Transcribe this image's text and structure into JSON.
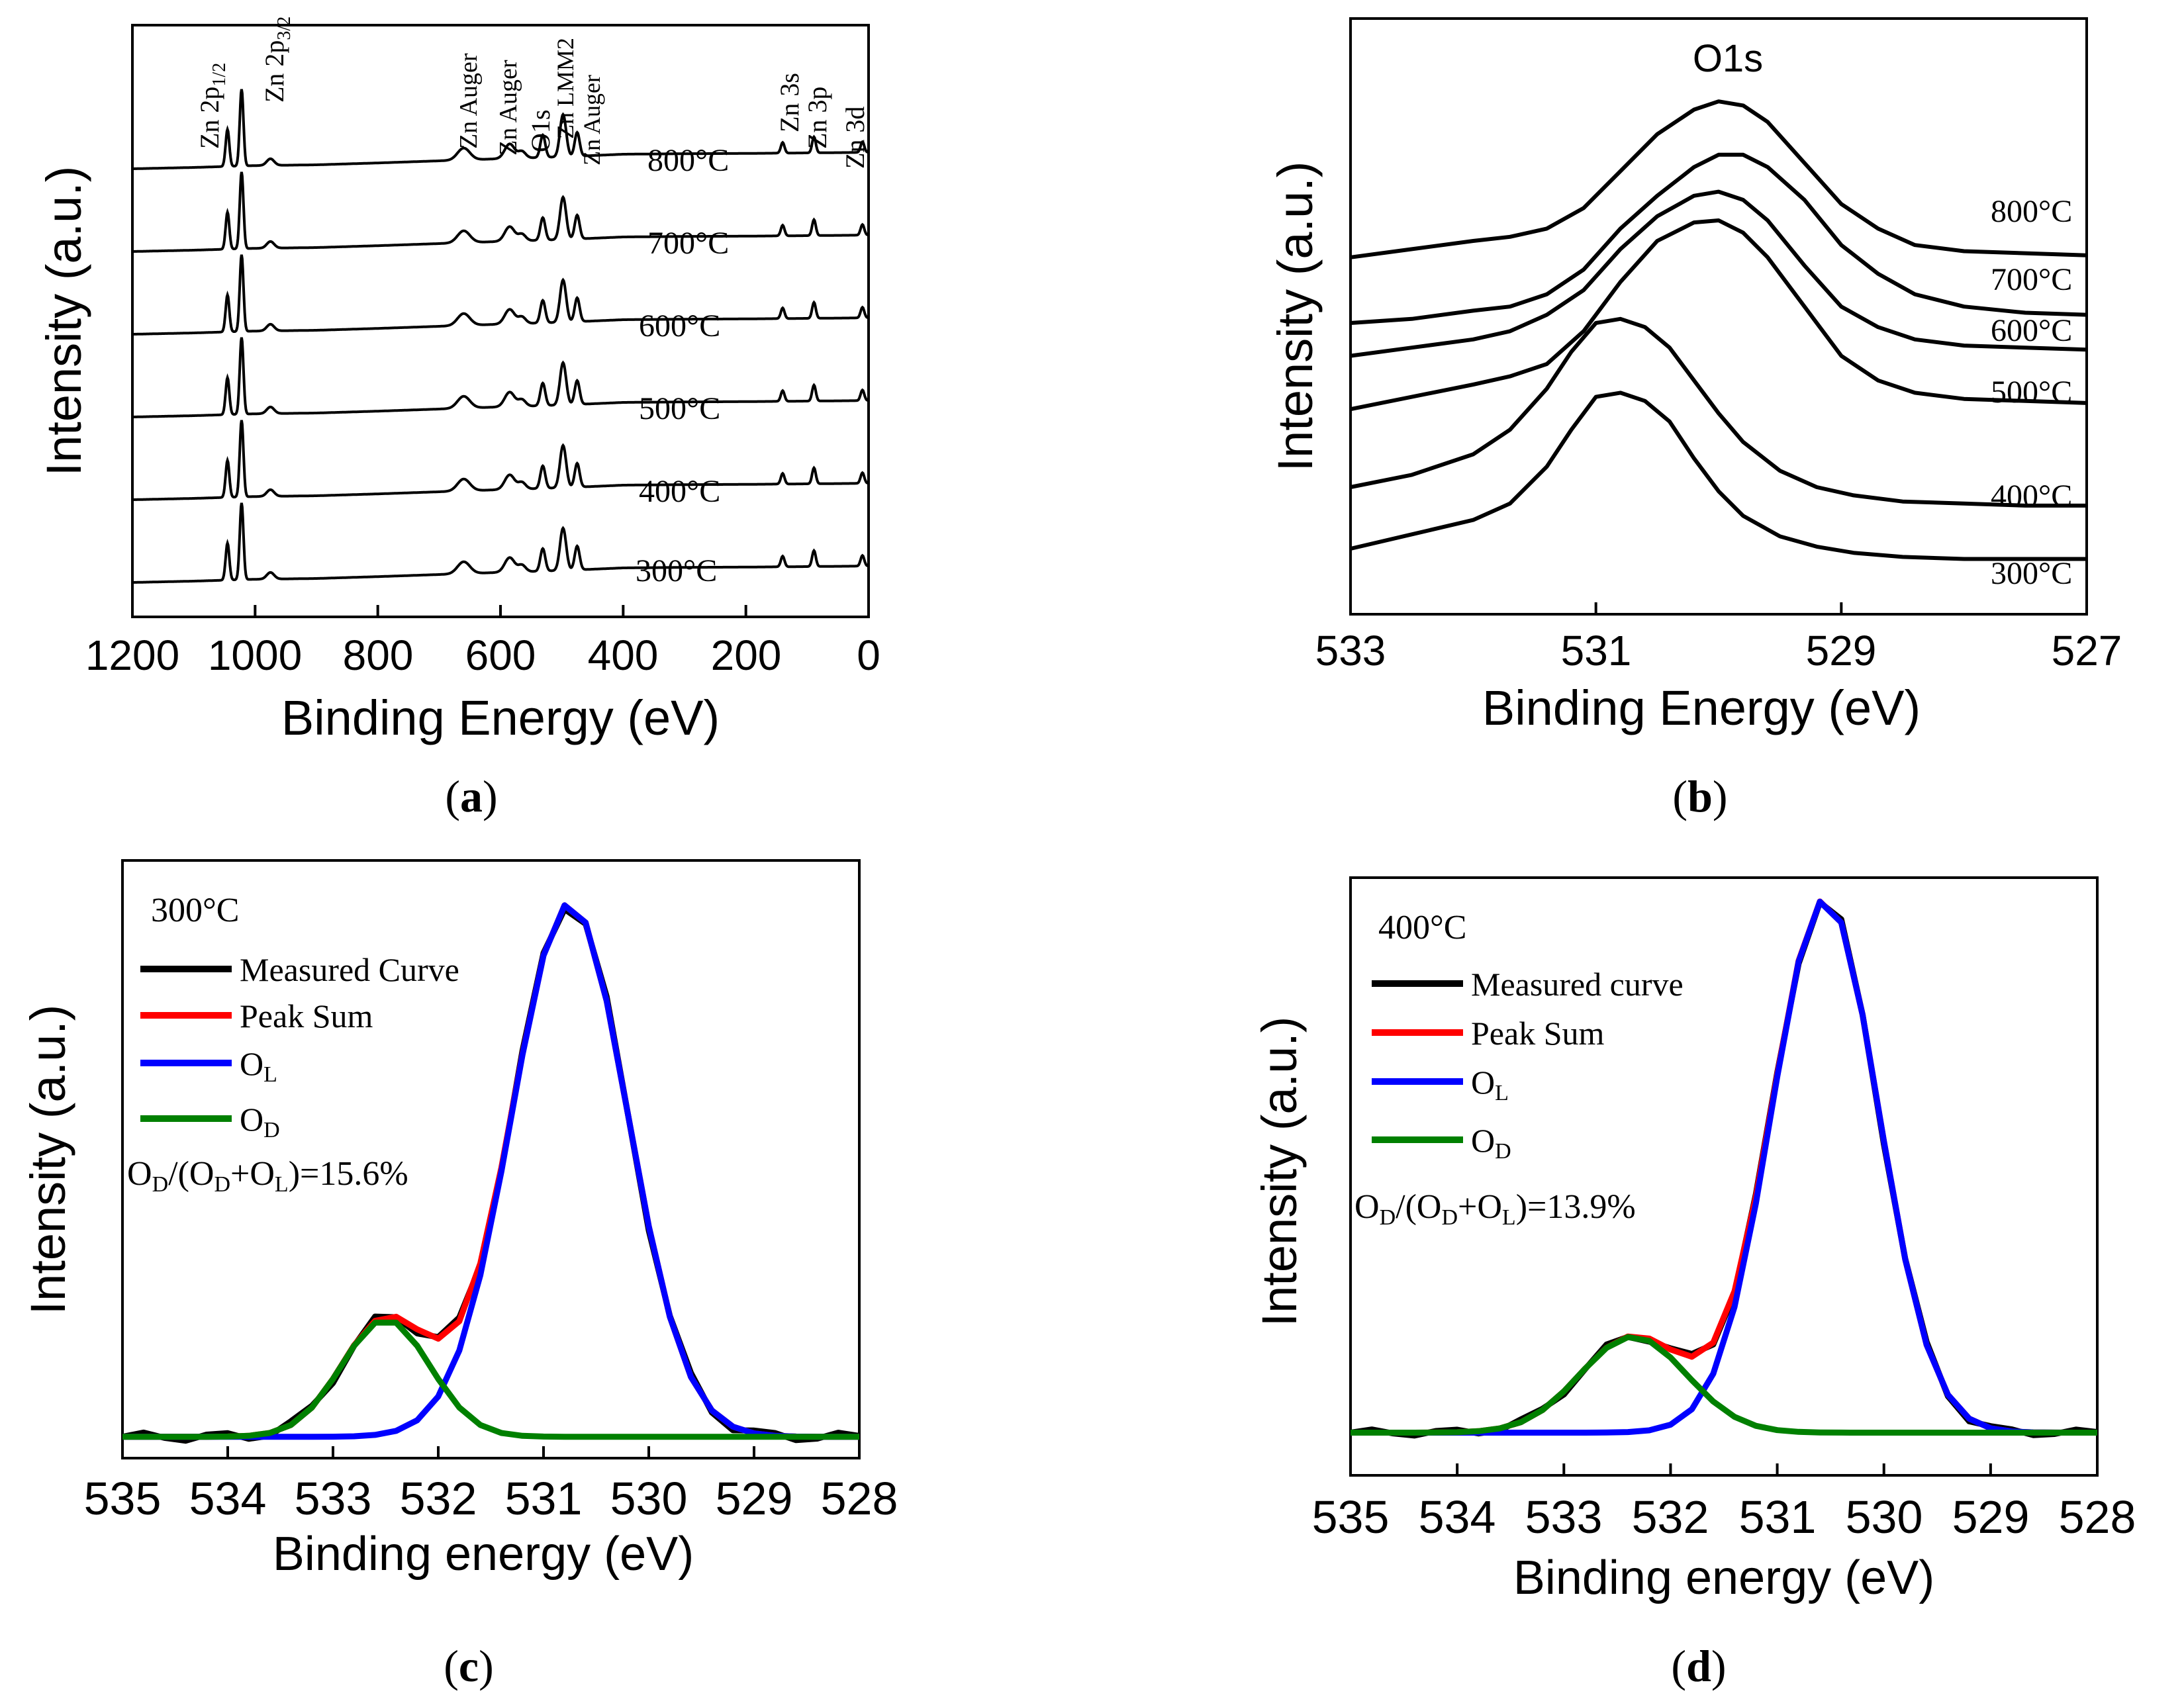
{
  "chart_data": [
    {
      "id": "a",
      "type": "line",
      "panel_label": "a",
      "xlabel": "Binding Energy (eV)",
      "ylabel": "Intensity (a.u.)",
      "xlim": [
        1200,
        0
      ],
      "x_ticks": [
        "1200",
        "1000",
        "800",
        "600",
        "400",
        "200",
        "0"
      ],
      "x_tick_values": [
        1200,
        1000,
        800,
        600,
        400,
        200,
        0
      ],
      "baseline_x": [
        1200,
        1100,
        1000,
        900,
        800,
        700,
        600,
        500,
        400,
        300,
        200,
        100,
        0
      ],
      "baseline_y": [
        0.0,
        0.05,
        0.12,
        0.15,
        0.22,
        0.3,
        0.38,
        0.45,
        0.55,
        0.57,
        0.58,
        0.6,
        0.62
      ],
      "peaks": [
        {
          "center": 1045,
          "height": 1.4,
          "width": 3.0
        },
        {
          "center": 1022,
          "height": 2.9,
          "width": 3.0
        },
        {
          "center": 975,
          "height": 0.25,
          "width": 6.0
        },
        {
          "center": 660,
          "height": 0.45,
          "width": 10.0
        },
        {
          "center": 585,
          "height": 0.55,
          "width": 8.0
        },
        {
          "center": 565,
          "height": 0.25,
          "width": 6.0
        },
        {
          "center": 531,
          "height": 0.85,
          "width": 4.0
        },
        {
          "center": 498,
          "height": 1.6,
          "width": 5.0
        },
        {
          "center": 475,
          "height": 0.9,
          "width": 4.0
        },
        {
          "center": 140,
          "height": 0.4,
          "width": 3.0
        },
        {
          "center": 89,
          "height": 0.6,
          "width": 3.0
        },
        {
          "center": 10,
          "height": 0.4,
          "width": 3.0
        }
      ],
      "series": [
        {
          "name": "300°C",
          "label": "300°C",
          "offset": 0
        },
        {
          "name": "400°C",
          "label": "400°C",
          "offset": 1
        },
        {
          "name": "500°C",
          "label": "500°C",
          "offset": 2
        },
        {
          "name": "600°C",
          "label": "600°C",
          "offset": 3
        },
        {
          "name": "700°C",
          "label": "700°C",
          "offset": 4
        },
        {
          "name": "800°C",
          "label": "800°C",
          "offset": 5
        }
      ],
      "annotations": [
        {
          "text": "Zn 2p",
          "sub": "1/2",
          "x": 1045
        },
        {
          "text": "Zn 2p",
          "sub": "3/2",
          "x": 1000
        },
        {
          "text": "Zn Auger",
          "sub": "",
          "x": 660
        },
        {
          "text": "Zn Auger",
          "sub": "",
          "x": 590
        },
        {
          "text": "O1s",
          "sub": "",
          "x": 531
        },
        {
          "text": "Zn LMM2",
          "sub": "",
          "x": 500
        },
        {
          "text": "Zn Auger",
          "sub": "",
          "x": 468
        },
        {
          "text": "Zn 3s",
          "sub": "",
          "x": 140
        },
        {
          "text": "Zn 3p",
          "sub": "",
          "x": 89
        },
        {
          "text": "Zn 3d",
          "sub": "",
          "x": 10
        }
      ]
    },
    {
      "id": "b",
      "type": "line",
      "panel_label": "b",
      "title": "O1s",
      "xlabel": "Binding Energy (eV)",
      "ylabel": "Intensity (a.u.)",
      "xlim": [
        533,
        527
      ],
      "x_ticks": [
        "533",
        "531",
        "529",
        "527"
      ],
      "x_tick_values": [
        533,
        531,
        529,
        527
      ],
      "series": [
        {
          "name": "800°C",
          "label": "800°C",
          "x": [
            533,
            532.5,
            532,
            531.7,
            531.4,
            531.1,
            530.8,
            530.5,
            530.2,
            530,
            529.8,
            529.6,
            529.3,
            529,
            528.7,
            528.4,
            528,
            527.5,
            527
          ],
          "y": [
            6.6,
            6.8,
            7.0,
            7.1,
            7.3,
            7.8,
            8.7,
            9.6,
            10.2,
            10.4,
            10.3,
            9.9,
            8.9,
            7.9,
            7.3,
            6.9,
            6.75,
            6.7,
            6.65
          ]
        },
        {
          "name": "700°C",
          "label": "700°C",
          "x": [
            533,
            532.5,
            532,
            531.7,
            531.4,
            531.1,
            530.8,
            530.5,
            530.2,
            530,
            529.8,
            529.6,
            529.3,
            529,
            528.7,
            528.4,
            528,
            527.5,
            527
          ],
          "y": [
            5.0,
            5.1,
            5.3,
            5.4,
            5.7,
            6.3,
            7.3,
            8.1,
            8.8,
            9.1,
            9.1,
            8.8,
            8.0,
            6.9,
            6.2,
            5.7,
            5.4,
            5.25,
            5.2
          ]
        },
        {
          "name": "600°C",
          "label": "600°C",
          "x": [
            533,
            532.5,
            532,
            531.7,
            531.4,
            531.1,
            530.8,
            530.5,
            530.2,
            530,
            529.8,
            529.6,
            529.3,
            529,
            528.7,
            528.4,
            528,
            527.5,
            527
          ],
          "y": [
            4.2,
            4.4,
            4.6,
            4.8,
            5.2,
            5.8,
            6.8,
            7.6,
            8.1,
            8.2,
            8.0,
            7.5,
            6.4,
            5.4,
            4.9,
            4.6,
            4.45,
            4.4,
            4.35
          ]
        },
        {
          "name": "500°C",
          "label": "500°C",
          "x": [
            533,
            532.5,
            532,
            531.7,
            531.4,
            531.1,
            530.8,
            530.5,
            530.2,
            530,
            529.8,
            529.6,
            529.3,
            529,
            528.7,
            528.4,
            528,
            527.5,
            527
          ],
          "y": [
            2.9,
            3.2,
            3.5,
            3.7,
            4.0,
            4.8,
            6.0,
            7.0,
            7.45,
            7.5,
            7.2,
            6.6,
            5.4,
            4.2,
            3.6,
            3.3,
            3.15,
            3.1,
            3.05
          ]
        },
        {
          "name": "400°C",
          "label": "400°C",
          "x": [
            533,
            532.5,
            532,
            531.7,
            531.4,
            531.2,
            531,
            530.8,
            530.6,
            530.4,
            530.2,
            530,
            529.8,
            529.5,
            529.2,
            528.9,
            528.5,
            528,
            527.5,
            527
          ],
          "y": [
            1.0,
            1.3,
            1.8,
            2.4,
            3.4,
            4.3,
            5.0,
            5.1,
            4.9,
            4.4,
            3.6,
            2.8,
            2.1,
            1.4,
            1.0,
            0.8,
            0.65,
            0.6,
            0.55,
            0.55
          ]
        },
        {
          "name": "300°C",
          "label": "300°C",
          "x": [
            533,
            532.5,
            532,
            531.7,
            531.4,
            531.2,
            531,
            530.8,
            530.6,
            530.4,
            530.2,
            530,
            529.8,
            529.5,
            529.2,
            528.9,
            528.5,
            528,
            527.5,
            527
          ],
          "y": [
            -0.5,
            -0.15,
            0.2,
            0.6,
            1.5,
            2.4,
            3.2,
            3.3,
            3.1,
            2.6,
            1.7,
            0.9,
            0.3,
            -0.2,
            -0.45,
            -0.6,
            -0.7,
            -0.75,
            -0.75,
            -0.75
          ]
        }
      ]
    },
    {
      "id": "c",
      "type": "line",
      "panel_label": "c",
      "sample_label": "300°C",
      "xlabel": "Binding energy (eV)",
      "ylabel": "Intensity (a.u.)",
      "xlim": [
        535,
        528
      ],
      "ylim": [
        -0.04,
        1.08
      ],
      "x_ticks": [
        "535",
        "534",
        "533",
        "532",
        "531",
        "530",
        "529",
        "528"
      ],
      "x_tick_values": [
        535,
        534,
        533,
        532,
        531,
        530,
        529,
        528
      ],
      "ratio_text": "=15.6%",
      "legend": [
        "Measured Curve",
        "Peak Sum",
        "O",
        "O"
      ],
      "legend_subs": [
        "",
        "",
        "L",
        "D"
      ],
      "components": {
        "O_L": {
          "center": 530.75,
          "height": 1.0,
          "sigma": 0.55
        },
        "O_D": {
          "center": 532.5,
          "height": 0.22,
          "sigma": 0.42
        },
        "baseline": 0.0
      },
      "series": [
        {
          "name": "Measured Curve",
          "color": "#000000"
        },
        {
          "name": "Peak Sum",
          "color": "#ff0000"
        },
        {
          "name": "O_L",
          "color": "#0000ff"
        },
        {
          "name": "O_D",
          "color": "#008000"
        }
      ]
    },
    {
      "id": "d",
      "type": "line",
      "panel_label": "d",
      "sample_label": "400°C",
      "xlabel": "Binding energy (eV)",
      "ylabel": "Intensity (a.u.)",
      "xlim": [
        535,
        528
      ],
      "ylim": [
        -0.08,
        1.04
      ],
      "x_ticks": [
        "535",
        "534",
        "533",
        "532",
        "531",
        "530",
        "529",
        "528"
      ],
      "x_tick_values": [
        535,
        534,
        533,
        532,
        531,
        530,
        529,
        528
      ],
      "ratio_text": "=13.9%",
      "legend": [
        "Measured curve",
        "Peak Sum",
        "O",
        "O"
      ],
      "legend_subs": [
        "",
        "",
        "L",
        "D"
      ],
      "components": {
        "O_L": {
          "center": 530.55,
          "height": 1.0,
          "sigma": 0.5
        },
        "O_D": {
          "center": 532.35,
          "height": 0.18,
          "sigma": 0.5
        },
        "baseline": 0.0
      },
      "series": [
        {
          "name": "Measured curve",
          "color": "#000000"
        },
        {
          "name": "Peak Sum",
          "color": "#ff0000"
        },
        {
          "name": "O_L",
          "color": "#0000ff"
        },
        {
          "name": "O_D",
          "color": "#008000"
        }
      ]
    }
  ]
}
